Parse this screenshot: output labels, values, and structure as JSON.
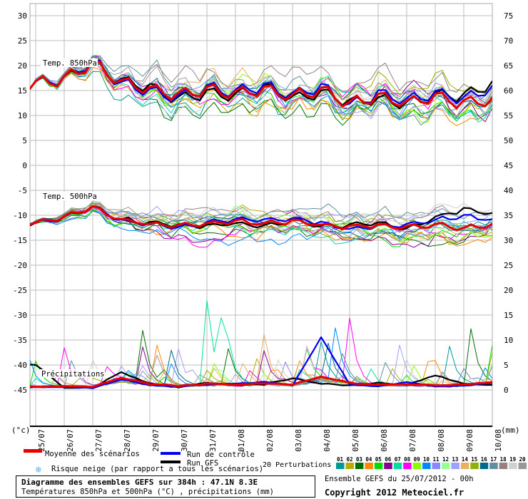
{
  "chart_data": {
    "type": "line",
    "title": "Diagramme des ensembles GEFS sur 384h : 47.1N 8.3E",
    "x_dates": [
      "25/07",
      "26/07",
      "27/07",
      "28/07",
      "29/07",
      "30/07",
      "31/07",
      "01/08",
      "02/08",
      "03/08",
      "04/08",
      "05/08",
      "06/08",
      "07/08",
      "08/08",
      "09/08",
      "10/08"
    ],
    "y_left": {
      "max": 30,
      "min": -45,
      "step": 5,
      "unit": "(°c)"
    },
    "y_right": {
      "max": 75,
      "min": 0,
      "step": 5,
      "unit": "(mm)"
    },
    "steps_per_day": 4,
    "panels": [
      {
        "id": "t850",
        "label": "Temp. 850hPa",
        "unit": "°C",
        "axis": "left",
        "diurnal": 1.25,
        "spread": 2.6,
        "clamp": [
          4.2,
          22.0
        ],
        "mean": [
          16.5,
          17.3,
          20.6,
          16.6,
          15.4,
          14.0,
          15.2,
          14.4,
          15.3,
          13.8,
          15.2,
          12.4,
          13.8,
          12.6,
          13.8,
          12.4,
          13.2
        ],
        "control": [
          16.5,
          17.4,
          20.8,
          16.4,
          15.0,
          13.6,
          15.6,
          14.8,
          16.0,
          14.2,
          15.8,
          12.0,
          14.4,
          13.0,
          14.6,
          13.4,
          15.6
        ],
        "gfs": [
          16.5,
          17.2,
          20.4,
          16.8,
          15.8,
          13.2,
          14.6,
          14.0,
          15.6,
          13.4,
          14.6,
          12.8,
          13.2,
          12.2,
          14.2,
          14.0,
          16.4
        ]
      },
      {
        "id": "t500",
        "label": "Temp. 500hPa",
        "unit": "°C",
        "axis": "left",
        "diurnal": 0.45,
        "spread": 2.2,
        "clamp": [
          -20.6,
          -6.6
        ],
        "mean": [
          -11.5,
          -10.4,
          -8.3,
          -11.0,
          -11.7,
          -12.1,
          -11.8,
          -11.2,
          -11.7,
          -11.2,
          -11.9,
          -12.4,
          -11.9,
          -12.5,
          -11.9,
          -12.6,
          -11.9
        ],
        "control": [
          -11.5,
          -10.4,
          -8.2,
          -11.2,
          -11.9,
          -12.4,
          -11.5,
          -10.8,
          -10.9,
          -10.6,
          -11.5,
          -12.8,
          -12.2,
          -12.0,
          -11.0,
          -10.2,
          -10.8
        ],
        "gfs": [
          -11.5,
          -10.5,
          -8.4,
          -10.8,
          -11.5,
          -12.0,
          -12.1,
          -11.6,
          -12.3,
          -11.0,
          -12.2,
          -12.0,
          -11.6,
          -12.8,
          -10.4,
          -8.8,
          -9.6
        ]
      },
      {
        "id": "precip",
        "label": "Précipitations",
        "unit": "mm",
        "axis": "right",
        "mean": [
          0.6,
          0.6,
          0.5,
          2.4,
          1.1,
          0.7,
          1.1,
          1.0,
          1.2,
          1.0,
          2.6,
          1.3,
          0.9,
          1.1,
          0.8,
          1.0,
          1.4
        ],
        "control": [
          0.4,
          0.5,
          0.3,
          2.0,
          0.8,
          0.5,
          0.9,
          1.2,
          1.5,
          0.8,
          10.5,
          1.0,
          0.6,
          1.5,
          0.5,
          0.8,
          1.2
        ],
        "gfs": [
          5.0,
          0.4,
          0.3,
          3.5,
          1.2,
          0.4,
          1.3,
          0.8,
          1.0,
          2.2,
          1.2,
          0.8,
          1.3,
          0.9,
          2.8,
          1.2,
          0.9
        ],
        "member_spikes": [
          {
            "m": 6,
            "i": 25,
            "mm": 17
          },
          {
            "m": 6,
            "i": 27,
            "mm": 11
          },
          {
            "m": 2,
            "i": 16,
            "mm": 11
          },
          {
            "m": 3,
            "i": 18,
            "mm": 8
          },
          {
            "m": 7,
            "i": 45,
            "mm": 13
          },
          {
            "m": 9,
            "i": 43,
            "mm": 11
          },
          {
            "m": 0,
            "i": 59,
            "mm": 8
          },
          {
            "m": 2,
            "i": 62,
            "mm": 11
          },
          {
            "m": 15,
            "i": 20,
            "mm": 7
          },
          {
            "m": 16,
            "i": 44,
            "mm": 6
          },
          {
            "m": 13,
            "i": 33,
            "mm": 6
          }
        ]
      }
    ],
    "members": {
      "count": 20,
      "labels": [
        "01",
        "02",
        "03",
        "04",
        "05",
        "06",
        "07",
        "08",
        "09",
        "10",
        "11",
        "12",
        "13",
        "14",
        "15",
        "16",
        "17",
        "18",
        "19",
        "20"
      ],
      "colors": [
        "#009898",
        "#b8ac00",
        "#007000",
        "#ff8800",
        "#00dc00",
        "#880090",
        "#00e0a0",
        "#ff00ff",
        "#88ff00",
        "#0088ff",
        "#8888ff",
        "#98ff98",
        "#a0a0ff",
        "#e8b060",
        "#90b000",
        "#006888",
        "#6090a0",
        "#988080",
        "#d0d0d0",
        "#989898"
      ]
    }
  },
  "legend": {
    "mean_label": "Moyenne des scénarios",
    "mean_color": "#e80000",
    "control_label": "Run de contrôle",
    "control_color": "#0000f0",
    "gfs_label": "Run GFS",
    "gfs_color": "#000000",
    "perturbations_label": "20 Perturbations",
    "snow_label": "Risque neige (par rapport a tous les scénarios)",
    "snow_color": "#63b0e8"
  },
  "footer": {
    "title": "Diagramme des ensembles GEFS sur 384h : 47.1N 8.3E",
    "subtitle": "Températures 850hPa et 500hPa (°C) , précipitations (mm)",
    "run_info": "Ensemble GEFS du 25/07/2012 - 00h",
    "copyright": "Copyright 2012 Meteociel.fr"
  }
}
